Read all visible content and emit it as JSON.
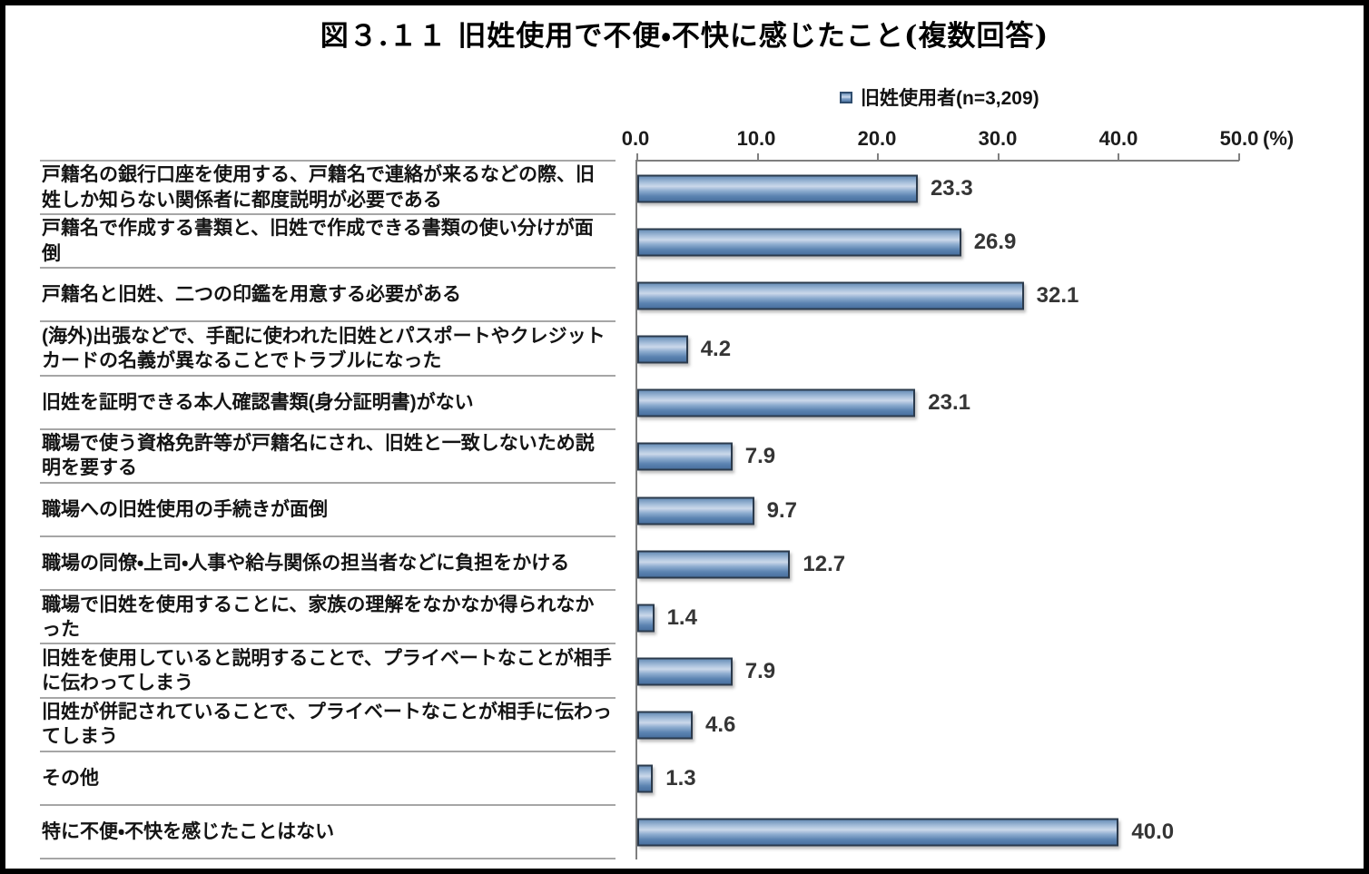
{
  "title": "図３.１１ 旧姓使用で不便・不快に感じたこと(複数回答)",
  "legend": {
    "marker_icon": "blue-square-icon",
    "label": "旧姓使用者(n=3,209)"
  },
  "chart_data": {
    "type": "bar",
    "orientation": "horizontal",
    "title": "図３.１１ 旧姓使用で不便・不快に感じたこと(複数回答)",
    "legend_entries": [
      "旧姓使用者(n=3,209)"
    ],
    "sample_size": "n=3,209",
    "categories": [
      "戸籍名の銀行口座を使用する、戸籍名で連絡が来るなどの際、旧姓しか知らない関係者に都度説明が必要である",
      "戸籍名で作成する書類と、旧姓で作成できる書類の使い分けが面倒",
      "戸籍名と旧姓、二つの印鑑を用意する必要がある",
      "(海外)出張などで、手配に使われた旧姓とパスポートやクレジットカードの名義が異なることでトラブルになった",
      "旧姓を証明できる本人確認書類(身分証明書)がない",
      "職場で使う資格免許等が戸籍名にされ、旧姓と一致しないため説明を要する",
      "職場への旧姓使用の手続きが面倒",
      "職場の同僚・上司・人事や給与関係の担当者などに負担をかける",
      "職場で旧姓を使用することに、家族の理解をなかなか得られなかった",
      "旧姓を使用していると説明することで、プライベートなことが相手に伝わってしまう",
      "旧姓が併記されていることで、プライベートなことが相手に伝わってしまう",
      "その他",
      "特に不便・不快を感じたことはない"
    ],
    "values": [
      23.3,
      26.9,
      32.1,
      4.2,
      23.1,
      7.9,
      9.7,
      12.7,
      1.4,
      7.9,
      4.6,
      1.3,
      40.0
    ],
    "value_labels": [
      "23.3",
      "26.9",
      "32.1",
      "4.2",
      "23.1",
      "7.9",
      "9.7",
      "12.7",
      "1.4",
      "7.9",
      "4.6",
      "1.3",
      "40.0"
    ],
    "x_ticks": [
      "0.0",
      "10.0",
      "20.0",
      "30.0",
      "40.0",
      "50.0"
    ],
    "x_unit": "(%)",
    "xlim": [
      0,
      50
    ],
    "grid": false,
    "axis_position": "top",
    "legend_position": "top-center",
    "colors": {
      "bar_fill": "#5b83b1",
      "bar_fill_highlight": "#cbd8ea",
      "bar_border": "#2b3a4c",
      "axis_line": "#7f7f7f",
      "category_separator": "#a6a6a6",
      "value_label_text": "#353535",
      "frame_border": "#000000",
      "background": "#ffffff"
    }
  }
}
